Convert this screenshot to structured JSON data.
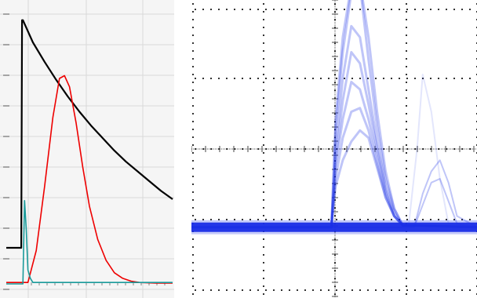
{
  "chart_data": [
    {
      "type": "line",
      "title": "",
      "xlabel": "",
      "ylabel": "",
      "grid": true,
      "legend": "none",
      "xlim": [
        0,
        10
      ],
      "ylim": [
        0,
        10
      ],
      "background": "#f5f5f5",
      "grid_color": "#d9d9d9",
      "series": [
        {
          "color": "#000000",
          "values": {
            "x": [
              0,
              0.9,
              0.9,
              0.95,
              1.0,
              1.6,
              2.3,
              3.0,
              3.7,
              4.4,
              5.1,
              5.8,
              6.5,
              7.2,
              7.9,
              8.6,
              9.3,
              10.0
            ],
            "y": [
              1.3,
              1.3,
              1.3,
              9.5,
              9.5,
              8.7,
              8.0,
              7.35,
              6.75,
              6.2,
              5.7,
              5.25,
              4.8,
              4.4,
              4.05,
              3.7,
              3.35,
              3.05
            ]
          }
        },
        {
          "color": "#ee0000",
          "values": {
            "x": [
              0,
              1.3,
              1.8,
              2.3,
              2.8,
              3.2,
              3.5,
              3.8,
              4.2,
              4.6,
              5.0,
              5.5,
              6.0,
              6.5,
              7.0,
              7.5,
              8.0,
              9.0,
              10.0
            ],
            "y": [
              0.05,
              0.05,
              1.2,
              3.5,
              6.0,
              7.4,
              7.5,
              7.1,
              5.8,
              4.2,
              2.8,
              1.6,
              0.85,
              0.4,
              0.2,
              0.1,
              0.05,
              0.03,
              0.03
            ]
          }
        },
        {
          "color": "#1a9a9a",
          "values": {
            "x": [
              0,
              1.0,
              1.1,
              1.2,
              1.3,
              1.45,
              1.6,
              2.5,
              4.0,
              6.0,
              8.0,
              10.0
            ],
            "y": [
              0.0,
              0.0,
              3.0,
              2.0,
              0.5,
              0.2,
              0.05,
              0.05,
              0.05,
              0.05,
              0.05,
              0.05
            ]
          }
        }
      ]
    },
    {
      "type": "line",
      "title": "",
      "xlabel": "",
      "ylabel": "",
      "grid": true,
      "legend": "none",
      "xlim": [
        0,
        10
      ],
      "ylim": [
        -4,
        4
      ],
      "trace_color": "#1a2ee6",
      "baseline": -2.1,
      "series": [
        {
          "values": {
            "x": [
              0,
              4.9,
              5.05,
              5.3,
              5.6,
              5.9,
              6.2,
              6.5,
              6.8,
              7.1,
              7.4,
              10
            ],
            "y": [
              -2.1,
              -2.1,
              -1.0,
              -0.3,
              0.2,
              0.5,
              0.3,
              -0.5,
              -1.3,
              -1.8,
              -2.05,
              -2.1
            ]
          }
        },
        {
          "values": {
            "x": [
              0,
              4.9,
              5.05,
              5.3,
              5.6,
              5.9,
              6.2,
              6.5,
              6.8,
              7.1,
              7.4,
              10
            ],
            "y": [
              -2.1,
              -2.1,
              -0.8,
              0.3,
              1.0,
              1.1,
              0.5,
              -0.4,
              -1.3,
              -1.8,
              -2.05,
              -2.1
            ]
          }
        },
        {
          "values": {
            "x": [
              0,
              4.9,
              5.05,
              5.3,
              5.6,
              5.9,
              6.2,
              6.5,
              6.8,
              7.1,
              7.4,
              10
            ],
            "y": [
              -2.1,
              -2.1,
              -0.5,
              0.8,
              1.8,
              1.6,
              0.8,
              -0.2,
              -1.2,
              -1.8,
              -2.05,
              -2.1
            ]
          }
        },
        {
          "values": {
            "x": [
              0,
              4.9,
              5.05,
              5.3,
              5.6,
              5.9,
              6.2,
              6.5,
              6.8,
              7.1,
              7.4,
              10
            ],
            "y": [
              -2.1,
              -2.1,
              -0.3,
              1.3,
              2.6,
              2.3,
              1.2,
              0.0,
              -1.1,
              -1.8,
              -2.05,
              -2.1
            ]
          }
        },
        {
          "values": {
            "x": [
              0,
              4.9,
              5.05,
              5.3,
              5.6,
              5.9,
              6.2,
              6.5,
              6.8,
              7.1,
              7.4,
              10
            ],
            "y": [
              -2.1,
              -2.1,
              0.0,
              1.9,
              3.3,
              3.0,
              1.6,
              0.2,
              -1.0,
              -1.7,
              -2.05,
              -2.1
            ]
          }
        },
        {
          "values": {
            "x": [
              0,
              4.9,
              5.05,
              5.3,
              5.6,
              5.9,
              6.2,
              6.5,
              6.8,
              7.1,
              7.4,
              10
            ],
            "y": [
              -2.1,
              -2.1,
              0.5,
              2.6,
              4.2,
              4.4,
              2.4,
              0.6,
              -0.8,
              -1.6,
              -2.05,
              -2.1
            ]
          }
        },
        {
          "values": {
            "x": [
              0,
              4.9,
              5.05,
              5.3,
              5.6,
              5.9,
              6.2,
              6.5,
              6.8,
              7.1,
              7.4,
              10
            ],
            "y": [
              -2.1,
              -2.1,
              0.8,
              3.0,
              4.4,
              4.5,
              3.0,
              1.0,
              -0.6,
              -1.6,
              -2.05,
              -2.1
            ]
          }
        },
        {
          "values": {
            "x": [
              0,
              7.8,
              8.1,
              8.4,
              8.7,
              9.0,
              9.3,
              10
            ],
            "y": [
              -2.1,
              -2.1,
              -1.2,
              -0.6,
              -0.3,
              -0.9,
              -1.8,
              -2.1
            ]
          }
        },
        {
          "values": {
            "x": [
              0,
              7.8,
              8.1,
              8.4,
              8.7,
              9.0,
              9.3,
              10
            ],
            "y": [
              -2.1,
              -2.1,
              -1.5,
              -0.9,
              -0.8,
              -1.4,
              -2.0,
              -2.1
            ]
          }
        },
        {
          "values": {
            "x": [
              0,
              7.6,
              7.9,
              8.1,
              8.4,
              8.7,
              9.0,
              10
            ],
            "y": [
              -2.1,
              -2.1,
              0.0,
              2.0,
              1.0,
              -0.8,
              -2.0,
              -2.1
            ]
          }
        }
      ]
    }
  ]
}
